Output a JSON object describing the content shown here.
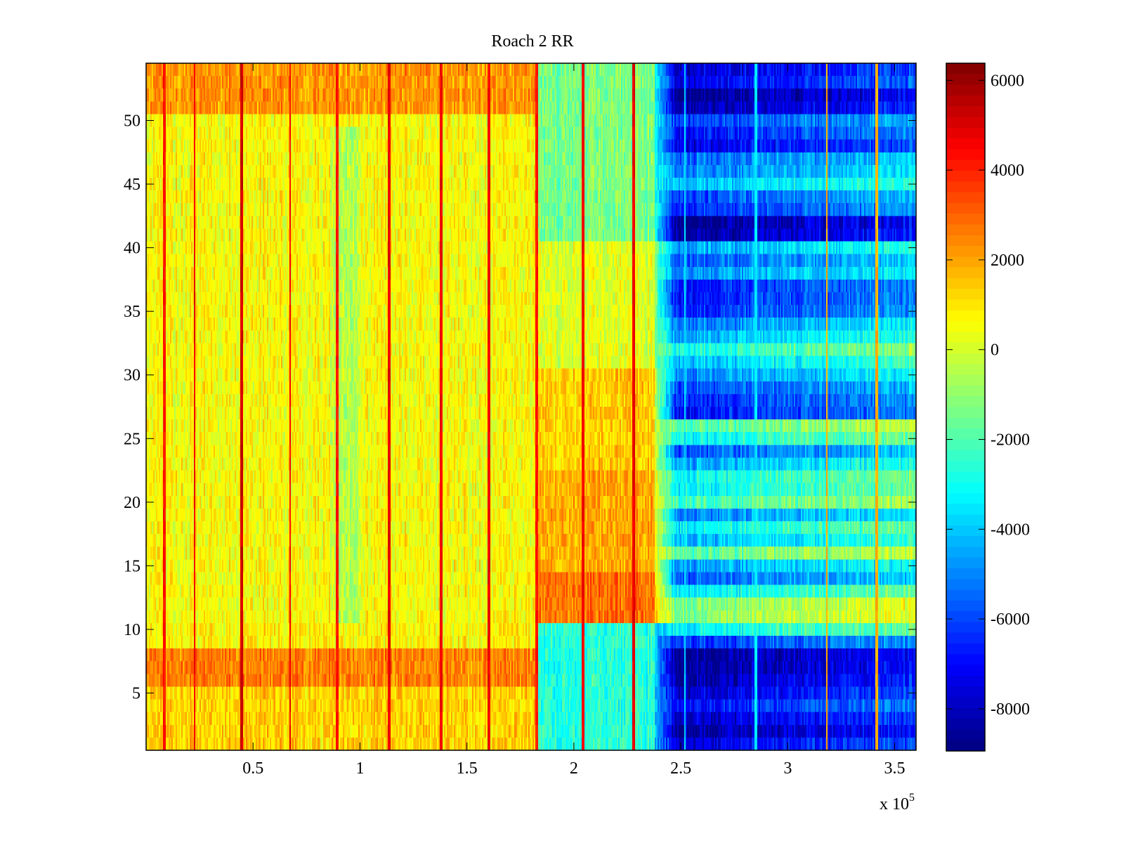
{
  "chart_data": {
    "type": "heatmap",
    "title": "Roach 2 RR",
    "xlabel": "",
    "ylabel": "",
    "x_multiplier_label": "x 10",
    "x_multiplier_exponent": "5",
    "xlim": [
      0.0,
      3.6
    ],
    "ylim": [
      0.5,
      54.5
    ],
    "n_rows": 54,
    "xticks": [
      0.5,
      1.0,
      1.5,
      2.0,
      2.5,
      3.0,
      3.5
    ],
    "xtick_labels": [
      "0.5",
      "1",
      "1.5",
      "2",
      "2.5",
      "3",
      "3.5"
    ],
    "yticks": [
      5,
      10,
      15,
      20,
      25,
      30,
      35,
      40,
      45,
      50
    ],
    "ytick_labels": [
      "5",
      "10",
      "15",
      "20",
      "25",
      "30",
      "35",
      "40",
      "45",
      "50"
    ],
    "colormap": "jet",
    "clim": [
      -8940,
      6380
    ],
    "colorbar_ticks": [
      6000,
      4000,
      2000,
      0,
      -2000,
      -4000,
      -6000,
      -8000
    ],
    "colorbar_tick_labels": [
      "6000",
      "4000",
      "2000",
      "0",
      "-2000",
      "-4000",
      "-6000",
      "-8000"
    ],
    "grid": false,
    "colorbar_position": "right",
    "regions": [
      {
        "name": "left",
        "x_range": [
          0.0,
          1.83
        ],
        "base": 900,
        "row_bands": [
          {
            "rows": [
              51,
              54
            ],
            "value": 2200
          },
          {
            "rows": [
              6,
              8
            ],
            "value": 2500
          },
          {
            "rows": [
              1,
              5
            ],
            "value": 1300
          },
          {
            "rows": [
              9,
              10
            ],
            "value": 800
          },
          {
            "rows": [
              11,
              50
            ],
            "value": 600
          }
        ],
        "cool_streak": {
          "x_range": [
            0.86,
            1.0
          ],
          "value": -1400
        }
      },
      {
        "name": "middle",
        "x_range": [
          1.83,
          2.38
        ],
        "base": 300,
        "row_bands": [
          {
            "rows": [
              11,
              14
            ],
            "value": 2800
          },
          {
            "rows": [
              15,
              22
            ],
            "value": 1900
          },
          {
            "rows": [
              23,
              30
            ],
            "value": 1400
          },
          {
            "rows": [
              31,
              40
            ],
            "value": 200
          },
          {
            "rows": [
              41,
              54
            ],
            "value": -1300
          },
          {
            "rows": [
              1,
              10
            ],
            "value": -2600
          }
        ]
      },
      {
        "name": "transition",
        "x_range": [
          2.38,
          2.48
        ],
        "base": -3500
      },
      {
        "name": "right",
        "x_range": [
          2.48,
          3.6
        ],
        "base": -6500,
        "row_values": [
          -7600,
          -8600,
          -7900,
          -6900,
          -7700,
          -8400,
          -8700,
          -8800,
          -6400,
          -3300,
          -1300,
          -1500,
          -3400,
          -5700,
          -4700,
          -2000,
          -4300,
          -3400,
          -5200,
          -2400,
          -3300,
          -3200,
          -4500,
          -5800,
          -3200,
          -2100,
          -6900,
          -6600,
          -6000,
          -5000,
          -4100,
          -2900,
          -4500,
          -5200,
          -6500,
          -6800,
          -6800,
          -5000,
          -5700,
          -4600,
          -8500,
          -8800,
          -6500,
          -6000,
          -4300,
          -5200,
          -5600,
          -7500,
          -6900,
          -6200,
          -8300,
          -8900,
          -7400,
          -7800
        ]
      }
    ],
    "spike_columns": [
      {
        "x": 0.087,
        "value": 4200
      },
      {
        "x": 0.227,
        "value": 4600
      },
      {
        "x": 0.447,
        "value": 5200
      },
      {
        "x": 0.673,
        "value": 4400
      },
      {
        "x": 0.893,
        "value": 4200
      },
      {
        "x": 1.137,
        "value": 4800
      },
      {
        "x": 1.377,
        "value": 4600
      },
      {
        "x": 1.603,
        "value": 4600
      },
      {
        "x": 1.827,
        "value": 4200
      },
      {
        "x": 2.043,
        "value": 4500
      },
      {
        "x": 2.28,
        "value": 4700
      },
      {
        "x": 2.52,
        "value": -3800
      },
      {
        "x": 2.85,
        "value": -3500
      },
      {
        "x": 3.183,
        "value": 1800
      },
      {
        "x": 3.417,
        "value": 1800
      }
    ],
    "noise_amplitude": 1500
  }
}
